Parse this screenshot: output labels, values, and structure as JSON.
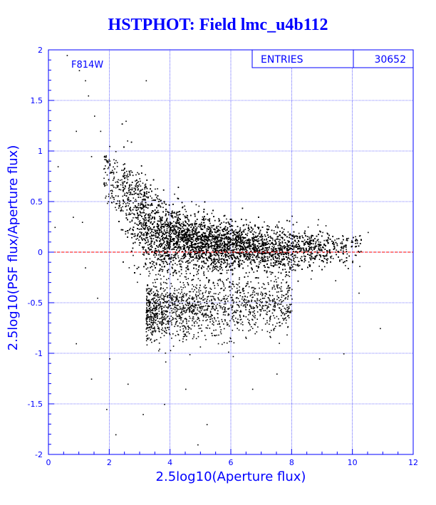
{
  "chart_data": {
    "type": "scatter",
    "title": "HSTPHOT: Field lmc_u4b112",
    "xlabel": "2.5log10(Aperture flux)",
    "ylabel": "2.5log10(PSF flux/Aperture flux)",
    "xlim": [
      0,
      12
    ],
    "ylim": [
      -2,
      2
    ],
    "xticks": [
      "0",
      "2",
      "4",
      "6",
      "8",
      "10",
      "12"
    ],
    "yticks": [
      "2",
      "1.5",
      "1",
      "0.5",
      "0",
      "-0.5",
      "-1",
      "-1.5",
      "-2"
    ],
    "grid": true,
    "reference_line": {
      "y": 0,
      "color": "#ff0000",
      "style": "dashed"
    },
    "stats_box": {
      "entries_label": "ENTRIES",
      "entries_value": "30652"
    },
    "annotation": "F814W",
    "colors": {
      "axis": "#0000ff",
      "points": "#000000",
      "reference": "#ff0000"
    },
    "series": [
      {
        "density_profile": [
          {
            "x": 2.5,
            "center": 0.6,
            "spread": 0.4,
            "weight": 0.5
          },
          {
            "x": 3.0,
            "center": 0.3,
            "spread": 0.3,
            "weight": 1.8
          },
          {
            "x": 3.5,
            "center": 0.2,
            "spread": 0.24,
            "weight": 2.6
          },
          {
            "x": 4.0,
            "center": 0.15,
            "spread": 0.2,
            "weight": 3.0
          },
          {
            "x": 5.0,
            "center": 0.1,
            "spread": 0.17,
            "weight": 3.0
          },
          {
            "x": 6.0,
            "center": 0.06,
            "spread": 0.15,
            "weight": 2.6
          },
          {
            "x": 7.0,
            "center": 0.04,
            "spread": 0.14,
            "weight": 2.0
          },
          {
            "x": 8.0,
            "center": 0.02,
            "spread": 0.13,
            "weight": 1.4
          },
          {
            "x": 9.0,
            "center": 0.02,
            "spread": 0.12,
            "weight": 0.9
          },
          {
            "x": 10.0,
            "center": 0.05,
            "spread": 0.1,
            "weight": 0.3
          }
        ],
        "secondary_clump": {
          "x_range": [
            3.2,
            8.0
          ],
          "center": -0.55,
          "spread": 0.15
        },
        "sparse_points": [
          [
            0.6,
            1.95
          ],
          [
            1.0,
            1.8
          ],
          [
            1.2,
            1.7
          ],
          [
            1.3,
            1.55
          ],
          [
            1.5,
            1.35
          ],
          [
            0.9,
            1.2
          ],
          [
            1.7,
            1.2
          ],
          [
            2.0,
            1.05
          ],
          [
            2.2,
            1.0
          ],
          [
            3.2,
            1.7
          ],
          [
            0.3,
            0.85
          ],
          [
            1.4,
            0.95
          ],
          [
            0.8,
            0.35
          ],
          [
            1.2,
            -0.15
          ],
          [
            1.6,
            -0.45
          ],
          [
            0.9,
            -0.9
          ],
          [
            2.0,
            -1.05
          ],
          [
            1.4,
            -1.25
          ],
          [
            2.6,
            -1.3
          ],
          [
            1.9,
            -1.55
          ],
          [
            3.1,
            -1.6
          ],
          [
            2.2,
            -1.8
          ],
          [
            3.8,
            -1.5
          ],
          [
            4.5,
            -1.35
          ],
          [
            5.2,
            -1.7
          ],
          [
            6.7,
            -1.35
          ],
          [
            7.5,
            -1.2
          ],
          [
            4.9,
            -1.9
          ],
          [
            1.1,
            0.3
          ],
          [
            10.5,
            0.2
          ],
          [
            10.2,
            -0.4
          ],
          [
            10.9,
            -0.75
          ],
          [
            9.7,
            -1.0
          ],
          [
            8.9,
            -1.05
          ],
          [
            0.2,
            0.25
          ]
        ]
      }
    ]
  }
}
